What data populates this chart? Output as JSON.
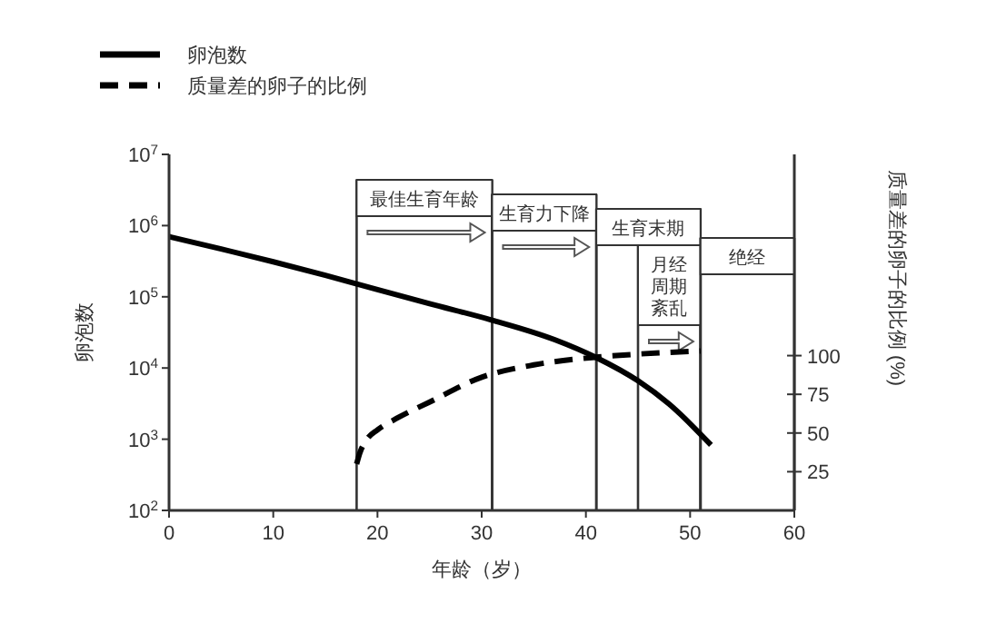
{
  "chart_data": {
    "type": "line",
    "xlabel": "年龄（岁）",
    "ylabel": "卵泡数",
    "y2label": "质量差的卵子的比例 (%)",
    "log": "y",
    "grid": false,
    "legend": "top left",
    "marker": "none",
    "xlim": [
      0,
      60
    ],
    "xticks": [
      0,
      10,
      20,
      30,
      40,
      50,
      60
    ],
    "ylim": [
      100,
      10000000
    ],
    "yticks": [
      {
        "value": 100,
        "label": "10$^{2}$"
      },
      {
        "value": 1000,
        "label": "10$^{3}$"
      },
      {
        "value": 10000,
        "label": "10$^{4}$"
      },
      {
        "value": 100000,
        "label": "10$^{5}$"
      },
      {
        "value": 1000000,
        "label": "10$^{6}$"
      },
      {
        "value": 10000000,
        "label": "10$^{7}$"
      }
    ],
    "y2lim": [
      0,
      230
    ],
    "y2ticks": [
      25,
      50,
      75,
      100
    ],
    "series": [
      {
        "name": "卵泡数",
        "color": "#000000",
        "line_style": "solid",
        "x": [
          0,
          5,
          10,
          15,
          20,
          25,
          31,
          37,
          41,
          45,
          48,
          52
        ],
        "values": [
          700000,
          470000,
          310000,
          200000,
          126000,
          80000,
          47000,
          25000,
          14000,
          6600,
          3100,
          830
        ]
      },
      {
        "name": "质量差的卵子的比例",
        "color": "#000000",
        "line_style": "dashed",
        "axis": "y2",
        "x": [
          18,
          18.3,
          19,
          20,
          22,
          25,
          30,
          35,
          41,
          45,
          51
        ],
        "values": [
          30,
          37,
          46,
          52,
          60,
          70,
          86,
          94,
          99,
          101,
          103
        ]
      }
    ],
    "bands": [
      {
        "axis": "x",
        "from": 18,
        "to": 31,
        "label": "最佳生育年龄"
      },
      {
        "axis": "x",
        "from": 31,
        "to": 41,
        "label": "生育力下降"
      },
      {
        "axis": "x",
        "from": 41,
        "to": 51,
        "label": "生育末期"
      },
      {
        "axis": "x",
        "from": 45,
        "to": 51,
        "label": "月经周期紊乱"
      },
      {
        "axis": "x",
        "from": 51,
        "to": 60,
        "label": "绝经"
      }
    ]
  }
}
